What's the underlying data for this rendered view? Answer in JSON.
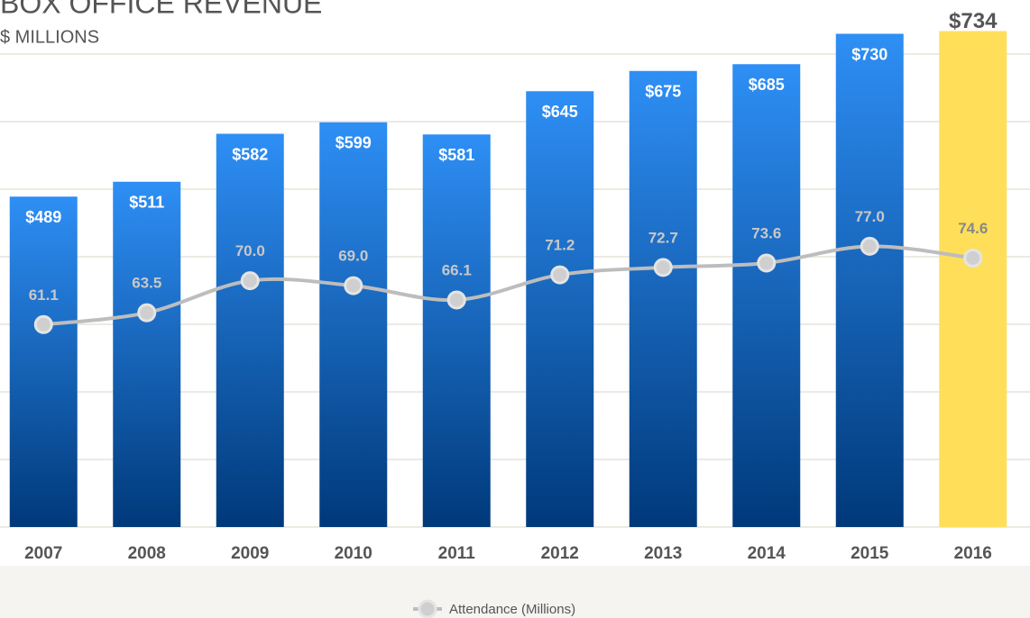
{
  "chart_data": {
    "type": "bar_line",
    "title": "BOX OFFICE REVENUE",
    "subtitle": "$ MILLIONS",
    "categories": [
      "2007",
      "2008",
      "2009",
      "2010",
      "2011",
      "2012",
      "2013",
      "2014",
      "2015",
      "2016"
    ],
    "ylim": [
      0,
      780
    ],
    "yticks": [
      0,
      100,
      200,
      300,
      400,
      500,
      600,
      700
    ],
    "grid": true,
    "y2lim": [
      20,
      127
    ],
    "legend": "bottom",
    "series": [
      {
        "type": "bar",
        "values": [
          489,
          511,
          582,
          599,
          581,
          645,
          675,
          685,
          730,
          734
        ],
        "value_labels": [
          "$489",
          "$511",
          "$582",
          "$599",
          "$581",
          "$645",
          "$675",
          "$685",
          "$730",
          "$734"
        ],
        "colors": [
          [
            "#2e8ff5",
            "#00397a"
          ],
          [
            "#2e8ff5",
            "#00397a"
          ],
          [
            "#2e8ff5",
            "#00397a"
          ],
          [
            "#2e8ff5",
            "#00397a"
          ],
          [
            "#2e8ff5",
            "#00397a"
          ],
          [
            "#2e8ff5",
            "#00397a"
          ],
          [
            "#2e8ff5",
            "#00397a"
          ],
          [
            "#2e8ff5",
            "#00397a"
          ],
          [
            "#2e8ff5",
            "#00397a"
          ],
          "#ffdf5a"
        ]
      },
      {
        "type": "line",
        "name": "Attendance (Millions)",
        "axis": "y2",
        "color": "#bdbdbd",
        "values": [
          61.1,
          63.5,
          70.0,
          69.0,
          66.1,
          71.2,
          72.7,
          73.6,
          77.0,
          74.6
        ],
        "value_labels": [
          "61.1",
          "63.5",
          "70.0",
          "69.0",
          "66.1",
          "71.2",
          "72.7",
          "73.6",
          "77.0",
          "74.6"
        ]
      }
    ]
  }
}
